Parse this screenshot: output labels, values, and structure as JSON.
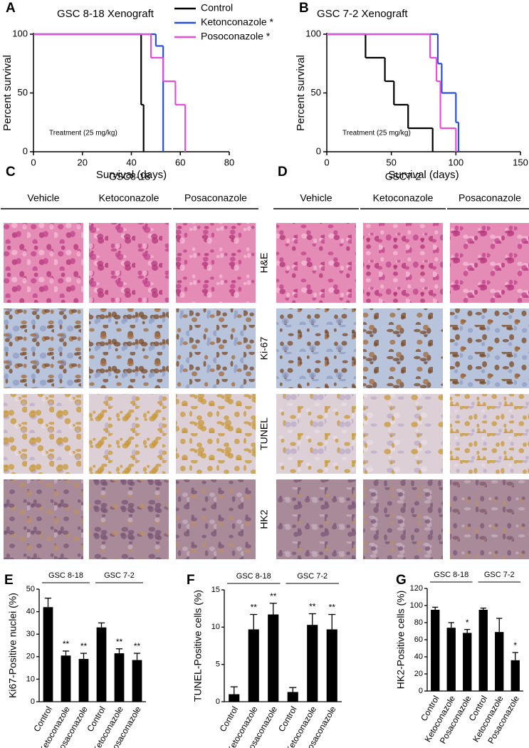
{
  "panel_labels": [
    "A",
    "B",
    "C",
    "D",
    "E",
    "F",
    "G"
  ],
  "chart_data": [
    {
      "type": "survival",
      "title": "GSC 8-18 Xenograft",
      "x_label": "Survival (days)",
      "y_label": "Percent survival",
      "annotation": "Treatment (25 mg/kg)",
      "xlim": [
        0,
        80
      ],
      "xticks": [
        0,
        20,
        40,
        60,
        80
      ],
      "ylim": [
        0,
        100
      ],
      "yticks": [
        0,
        50,
        100
      ],
      "series": [
        {
          "name": "Control",
          "color": "#000000",
          "x": [
            0,
            44,
            45
          ],
          "values": [
            100,
            40,
            0
          ]
        },
        {
          "name": "Ketonconazole *",
          "color": "#2a4fd8",
          "x": [
            0,
            50,
            53
          ],
          "values": [
            100,
            90,
            0
          ]
        },
        {
          "name": "Posoconazole *",
          "color": "#e84fd8",
          "x": [
            0,
            48,
            53,
            58,
            62
          ],
          "values": [
            100,
            80,
            60,
            40,
            0
          ]
        }
      ]
    },
    {
      "type": "survival",
      "title": "GSC 7-2 Xenograft",
      "x_label": "Survival (days)",
      "y_label": "Percent survival",
      "annotation": "Treatment (25 mg/kg)",
      "xlim": [
        0,
        150
      ],
      "xticks": [
        0,
        50,
        100,
        150
      ],
      "ylim": [
        0,
        100
      ],
      "yticks": [
        0,
        50,
        100
      ],
      "series": [
        {
          "color": "#000000",
          "x": [
            0,
            30,
            45,
            52,
            63,
            82
          ],
          "values": [
            100,
            80,
            60,
            40,
            20,
            0
          ]
        },
        {
          "color": "#2a4fd8",
          "x": [
            0,
            86,
            89,
            100,
            102
          ],
          "values": [
            100,
            75,
            50,
            25,
            0
          ]
        },
        {
          "color": "#e84fd8",
          "x": [
            0,
            80,
            85,
            88,
            100
          ],
          "values": [
            100,
            80,
            60,
            20,
            0
          ]
        }
      ]
    },
    {
      "type": "bar",
      "y_label": "Ki67-Positive nuclei (%)",
      "groups": [
        "GSC 8-18",
        "GSC 7-2"
      ],
      "color": "#000000",
      "categories": [
        "Control",
        "Ketoconazole",
        "Posaconazole",
        "Control",
        "Ketoconazole",
        "Posaconazole"
      ],
      "values": [
        42,
        20.5,
        19,
        33,
        21.5,
        18.5
      ],
      "errors": [
        4,
        2,
        2.5,
        2,
        2,
        3
      ],
      "stars": [
        null,
        "**",
        "**",
        null,
        "**",
        "**"
      ],
      "ylim": [
        0,
        50
      ],
      "yticks": [
        0,
        10,
        20,
        30,
        40,
        50
      ]
    },
    {
      "type": "bar",
      "y_label": "TUNEL-Positive cells (%)",
      "groups": [
        "GSC 8-18",
        "GSC 7-2"
      ],
      "color": "#000000",
      "categories": [
        "Control",
        "Ketoconazole",
        "Posaconazole",
        "Control",
        "Ketoconazole",
        "Posaconazole"
      ],
      "values": [
        1,
        9.7,
        11.7,
        1.3,
        10.3,
        9.7
      ],
      "errors": [
        1,
        2,
        1.5,
        0.6,
        1.5,
        2
      ],
      "stars": [
        null,
        "**",
        "**",
        null,
        "**",
        "**"
      ],
      "ylim": [
        0,
        15
      ],
      "yticks": [
        0,
        5,
        10,
        15
      ]
    },
    {
      "type": "bar",
      "y_label": "HK2-Positive cells (%)",
      "groups": [
        "GSC 8-18",
        "GSC 7-2"
      ],
      "color": "#000000",
      "categories": [
        "Control",
        "Ketoconazole",
        "Posaconazole",
        "Control",
        "Ketoconazole",
        "Posaconazole"
      ],
      "values": [
        95,
        74,
        68,
        95,
        69,
        36
      ],
      "errors": [
        3,
        6,
        4,
        2,
        16,
        9
      ],
      "stars": [
        null,
        null,
        "*",
        null,
        null,
        "*"
      ],
      "ylim": [
        0,
        120
      ],
      "yticks": [
        0,
        20,
        40,
        60,
        80,
        100,
        120
      ]
    }
  ],
  "histology": {
    "stains": [
      "H&E",
      "Ki-67",
      "TUNEL",
      "HK2"
    ],
    "panels": [
      {
        "title": "GSC8-18",
        "columns": [
          "Vehicle",
          "Ketoconazole",
          "Posaconazole"
        ]
      },
      {
        "title": "GSC7-2",
        "columns": [
          "Vehicle",
          "Ketoconazole",
          "Posaconazole"
        ]
      }
    ]
  }
}
